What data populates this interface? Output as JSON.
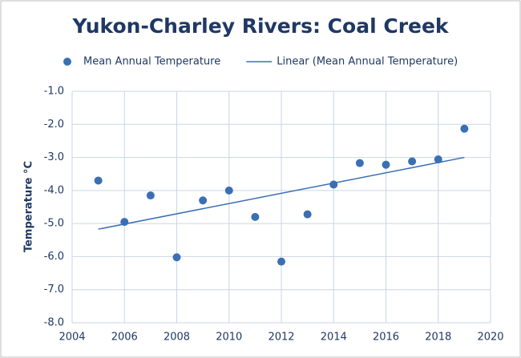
{
  "chart_data": {
    "type": "scatter",
    "title": "Yukon-Charley Rivers: Coal Creek",
    "y_label": "Temperature °C",
    "series": [
      {
        "name": "Mean Annual Temperature",
        "color": "#3a70b3",
        "mode": "markers",
        "x": [
          2005,
          2006,
          2007,
          2008,
          2009,
          2010,
          2011,
          2012,
          2013,
          2014,
          2015,
          2016,
          2017,
          2018,
          2019
        ],
        "values": [
          -3.7,
          -4.95,
          -4.15,
          -6.02,
          -4.3,
          -4.0,
          -4.8,
          -6.15,
          -4.72,
          -3.82,
          -3.17,
          -3.22,
          -3.12,
          -3.06,
          -2.13
        ]
      },
      {
        "name": "Linear (Mean Annual Temperature)",
        "color": "#3a70b3",
        "mode": "line",
        "x": [
          2005,
          2019
        ],
        "values": [
          -5.17,
          -3.0
        ]
      }
    ],
    "xlim": [
      2004,
      2020
    ],
    "xticks": [
      2004,
      2006,
      2008,
      2010,
      2012,
      2014,
      2016,
      2018,
      2020
    ],
    "ylim": [
      -8,
      -1
    ],
    "yticks": [
      {
        "value": -8,
        "label": "-8.0"
      },
      {
        "value": -7,
        "label": "-7.0"
      },
      {
        "value": -6,
        "label": "-6.0"
      },
      {
        "value": -5,
        "label": "-5.0"
      },
      {
        "value": -4,
        "label": "-4.0"
      },
      {
        "value": -3,
        "label": "-3.0"
      },
      {
        "value": -2,
        "label": "-2.0"
      },
      {
        "value": -1,
        "label": "-1.0"
      }
    ],
    "grid": true
  }
}
